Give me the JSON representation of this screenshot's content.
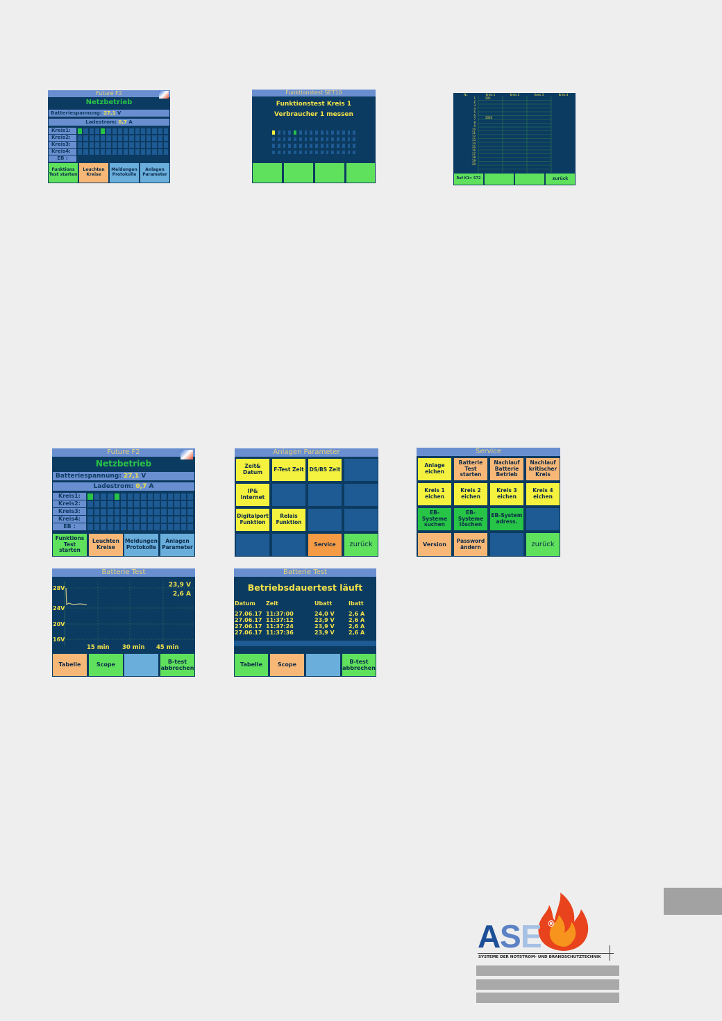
{
  "main_screen": {
    "title": "Future F2",
    "mode": "Netzbetrieb",
    "battery_label": "Batteriespannung:",
    "battery_value": "27,1",
    "battery_unit": "V",
    "charge_label": "Ladestrom:",
    "charge_value": "0,7",
    "charge_unit": "A",
    "circuits": [
      "Kreis1:",
      "Kreis2:",
      "Kreis3:",
      "Kreis4:",
      "EB :"
    ],
    "buttons": [
      "Funktions Test starten",
      "Leuchten Kreise",
      "Meldungen Protokolle",
      "Anlagen Parameter"
    ]
  },
  "function_test": {
    "title": "Funktionstest SET10",
    "line1": "Funktionstest Kreis 1",
    "line2": "Verbraucher 1 messen"
  },
  "circuit_table": {
    "headers": [
      "Nr.",
      "Kreis 1",
      "Kreis 2",
      "Kreis 3",
      "Kreis 4"
    ],
    "values": [
      {
        "row": 1,
        "value": "205"
      },
      {
        "row": 7,
        "value": "2020"
      }
    ],
    "buttons": [
      "Ref K1= 572",
      "",
      "",
      "zurück"
    ]
  },
  "anlagen_parameter": {
    "title": "Anlagen Parameter",
    "buttons": [
      "Zeit& Datum",
      "F-Test Zeit",
      "DS/BS Zeit",
      "IP& Internet",
      "Digitalport Funktion",
      "Relais Funktion",
      "Service",
      "zurück"
    ]
  },
  "service": {
    "title": "Service",
    "buttons": [
      "Anlage eichen",
      "Batterie Test starten",
      "Nachlauf Batterie Betrieb",
      "Nachlauf kritischer Kreis",
      "Kreis 1 eichen",
      "Kreis 2 eichen",
      "Kreis 3 eichen",
      "Kreis 4 eichen",
      "EB-Systeme suchen",
      "EB-Systeme löschen",
      "EB-System adress.",
      "Version",
      "Password ändern",
      "zurück"
    ]
  },
  "battery_scope": {
    "title": "Batterie Test",
    "voltage": "23,9 V",
    "current": "2,6 A",
    "y_ticks": [
      "28V",
      "24V",
      "20V",
      "16V"
    ],
    "x_ticks": [
      "15 min",
      "30 min",
      "45 min"
    ],
    "buttons": [
      "Tabelle",
      "Scope",
      "",
      "B-test abbrechen"
    ]
  },
  "battery_table": {
    "title": "Batterie Test",
    "heading": "Betriebsdauertest läuft",
    "headers": [
      "Datum",
      "Zeit",
      "Ubatt",
      "Ibatt"
    ],
    "rows": [
      [
        "27.06.17",
        "11:37:00",
        "24,0 V",
        "2,6 A"
      ],
      [
        "27.06.17",
        "11:37:12",
        "23,9 V",
        "2,6 A"
      ],
      [
        "27.06.17",
        "11:37:24",
        "23,9 V",
        "2,6 A"
      ],
      [
        "27.06.17",
        "11:37:36",
        "23,9 V",
        "2,6 A"
      ]
    ],
    "buttons": [
      "Tabelle",
      "Scope",
      "",
      "B-test abbrechen"
    ]
  },
  "logo": {
    "text": "ASE",
    "registered": "®",
    "tagline": "SYSTEME DER NOTSTROM- UND BRANDSCHUTZTECHNIK",
    "colors": {
      "a": "#1d4f97",
      "s": "#5b82c4",
      "e": "#a6c1e3",
      "flame": "#e8431c"
    }
  }
}
